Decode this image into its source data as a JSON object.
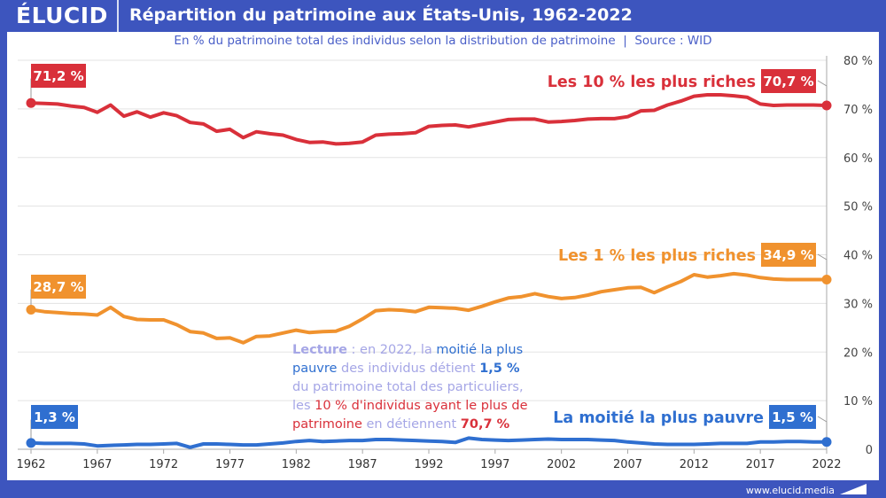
{
  "header": {
    "logo": "ÉLUCID",
    "title": "Répartition du patrimoine aux États-Unis, 1962-2022"
  },
  "subtitle": "En % du patrimoine total des individus selon la distribution de patrimoine  |  Source : WID",
  "footer": {
    "url": "www.elucid.media"
  },
  "lecture": {
    "p1": "Lecture",
    "p2": " : en 2022, la ",
    "p3": "moitié la plus pauvre",
    "p4": " des individus détient ",
    "p5": "1,5 %",
    "p6": " du patrimoine total des particuliers, les ",
    "p7": "10 % d'individus ayant le plus de patrimoine",
    "p8": " en détiennent ",
    "p9": "70,7 %"
  },
  "colors": {
    "top10": "#d9303a",
    "top1": "#f0922e",
    "bottom50": "#2f6fd0",
    "header": "#3d55be",
    "lecture": "#a5a6e6"
  },
  "chart_data": {
    "type": "line",
    "title": "Répartition du patrimoine aux États-Unis, 1962-2022",
    "xlim": [
      1962,
      2022
    ],
    "ylim": [
      0,
      80
    ],
    "x_ticks": [
      "1962",
      "1967",
      "1972",
      "1977",
      "1982",
      "1987",
      "1992",
      "1997",
      "2002",
      "2007",
      "2012",
      "2017",
      "2022"
    ],
    "y_ticks": [
      "0",
      "10 %",
      "20 %",
      "30 %",
      "40 %",
      "50 %",
      "60 %",
      "70 %",
      "80 %"
    ],
    "grid": true,
    "y_axis_side": "right",
    "x": [
      1962,
      1963,
      1964,
      1965,
      1966,
      1967,
      1968,
      1969,
      1970,
      1971,
      1972,
      1973,
      1974,
      1975,
      1976,
      1977,
      1978,
      1979,
      1980,
      1981,
      1982,
      1983,
      1984,
      1985,
      1986,
      1987,
      1988,
      1989,
      1990,
      1991,
      1992,
      1993,
      1994,
      1995,
      1996,
      1997,
      1998,
      1999,
      2000,
      2001,
      2002,
      2003,
      2004,
      2005,
      2006,
      2007,
      2008,
      2009,
      2010,
      2011,
      2012,
      2013,
      2014,
      2015,
      2016,
      2017,
      2018,
      2019,
      2020,
      2021,
      2022
    ],
    "series": [
      {
        "name": "Les 10 % les plus riches",
        "key": "top10",
        "start_label": "71,2 %",
        "end_label": "70,7 %",
        "values": [
          71.2,
          71.1,
          71,
          70.6,
          70.3,
          69.3,
          70.8,
          68.5,
          69.4,
          68.3,
          69.2,
          68.6,
          67.2,
          66.9,
          65.4,
          65.8,
          64.1,
          65.3,
          64.9,
          64.6,
          63.7,
          63.1,
          63.2,
          62.8,
          62.9,
          63.2,
          64.6,
          64.8,
          64.9,
          65.1,
          66.4,
          66.6,
          66.7,
          66.3,
          66.8,
          67.3,
          67.8,
          67.9,
          67.9,
          67.3,
          67.4,
          67.6,
          67.9,
          68,
          68,
          68.4,
          69.6,
          69.7,
          70.8,
          71.6,
          72.6,
          72.9,
          72.9,
          72.7,
          72.4,
          71,
          70.7,
          70.8,
          70.8,
          70.8,
          70.7
        ]
      },
      {
        "name": "Les 1 % les plus riches",
        "key": "top1",
        "start_label": "28,7 %",
        "end_label": "34,9 %",
        "values": [
          28.7,
          28.3,
          28.1,
          27.9,
          27.8,
          27.6,
          29.2,
          27.3,
          26.7,
          26.6,
          26.6,
          25.6,
          24.2,
          23.9,
          22.8,
          22.9,
          21.9,
          23.2,
          23.3,
          23.9,
          24.5,
          24,
          24.2,
          24.3,
          25.3,
          26.8,
          28.5,
          28.7,
          28.6,
          28.3,
          29.2,
          29.1,
          29,
          28.6,
          29.4,
          30.3,
          31.1,
          31.4,
          32,
          31.4,
          31,
          31.2,
          31.7,
          32.4,
          32.8,
          33.2,
          33.3,
          32.2,
          33.4,
          34.5,
          35.9,
          35.4,
          35.7,
          36.1,
          35.8,
          35.3,
          35,
          34.9,
          34.9,
          34.9,
          34.9
        ]
      },
      {
        "name": "La moitié la plus pauvre",
        "key": "bottom50",
        "start_label": "1,3 %",
        "end_label": "1,5 %",
        "values": [
          1.3,
          1.2,
          1.2,
          1.2,
          1.1,
          0.7,
          0.8,
          0.9,
          1,
          1,
          1.1,
          1.2,
          0.4,
          1.1,
          1.1,
          1,
          0.9,
          0.9,
          1.1,
          1.3,
          1.6,
          1.8,
          1.6,
          1.7,
          1.8,
          1.8,
          2,
          2,
          1.9,
          1.8,
          1.7,
          1.6,
          1.4,
          2.3,
          2,
          1.9,
          1.8,
          1.9,
          2,
          2.1,
          2,
          2,
          2,
          1.9,
          1.8,
          1.5,
          1.3,
          1.1,
          1,
          1,
          1,
          1.1,
          1.2,
          1.2,
          1.2,
          1.5,
          1.5,
          1.6,
          1.6,
          1.5,
          1.5
        ]
      }
    ]
  }
}
